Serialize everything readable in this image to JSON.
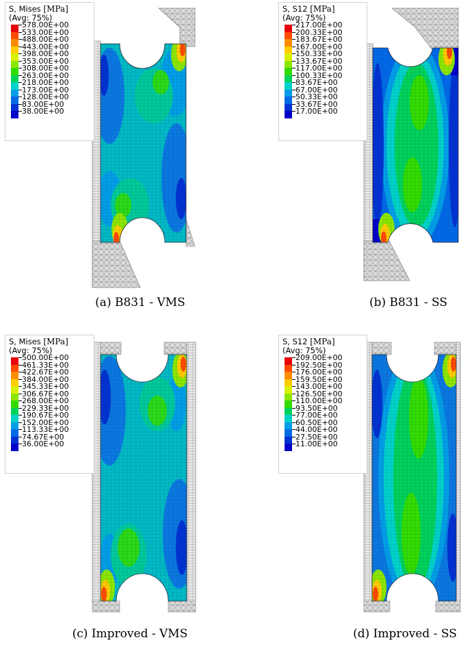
{
  "panels": [
    {
      "caption": "(a) B831 - VMS",
      "legend": {
        "quantity": "S, Mises",
        "unit": "[MPa]",
        "averaging": "(Avg: 75%)",
        "values": [
          "578.00E+00",
          "533.00E+00",
          "488.00E+00",
          "443.00E+00",
          "398.00E+00",
          "353.00E+00",
          "308.00E+00",
          "263.00E+00",
          "218.00E+00",
          "173.00E+00",
          "128.00E+00",
          "83.00E+00",
          "38.00E+00"
        ]
      }
    },
    {
      "caption": "(b) B831 - SS",
      "legend": {
        "quantity": "S, S12",
        "unit": "[MPa]",
        "averaging": "(Avg: 75%)",
        "values": [
          "217.00E+00",
          "200.33E+00",
          "183.67E+00",
          "167.00E+00",
          "150.33E+00",
          "133.67E+00",
          "117.00E+00",
          "100.33E+00",
          "83.67E+00",
          "67.00E+00",
          "50.33E+00",
          "33.67E+00",
          "17.00E+00"
        ]
      }
    },
    {
      "caption": "(c) Improved - VMS",
      "legend": {
        "quantity": "S, Mises",
        "unit": "[MPa]",
        "averaging": "(Avg: 75%)",
        "values": [
          "500.00E+00",
          "461.33E+00",
          "422.67E+00",
          "384.00E+00",
          "345.33E+00",
          "306.67E+00",
          "268.00E+00",
          "229.33E+00",
          "190.67E+00",
          "152.00E+00",
          "113.33E+00",
          "74.67E+00",
          "36.00E+00"
        ]
      }
    },
    {
      "caption": "(d) Improved - SS",
      "legend": {
        "quantity": "S, S12",
        "unit": "[MPa]",
        "averaging": "(Avg: 75%)",
        "values": [
          "209.00E+00",
          "192.50E+00",
          "176.00E+00",
          "159.50E+00",
          "143.00E+00",
          "126.50E+00",
          "110.00E+00",
          "93.50E+00",
          "77.00E+00",
          "60.50E+00",
          "44.00E+00",
          "27.50E+00",
          "11.00E+00"
        ]
      }
    }
  ],
  "colormap": [
    "#e8000b",
    "#ff4a00",
    "#ff8c00",
    "#ffcc00",
    "#d9f000",
    "#8ce600",
    "#32dc00",
    "#00d25a",
    "#00d2c8",
    "#009ee6",
    "#0069e6",
    "#0032d2",
    "#0000c8"
  ]
}
